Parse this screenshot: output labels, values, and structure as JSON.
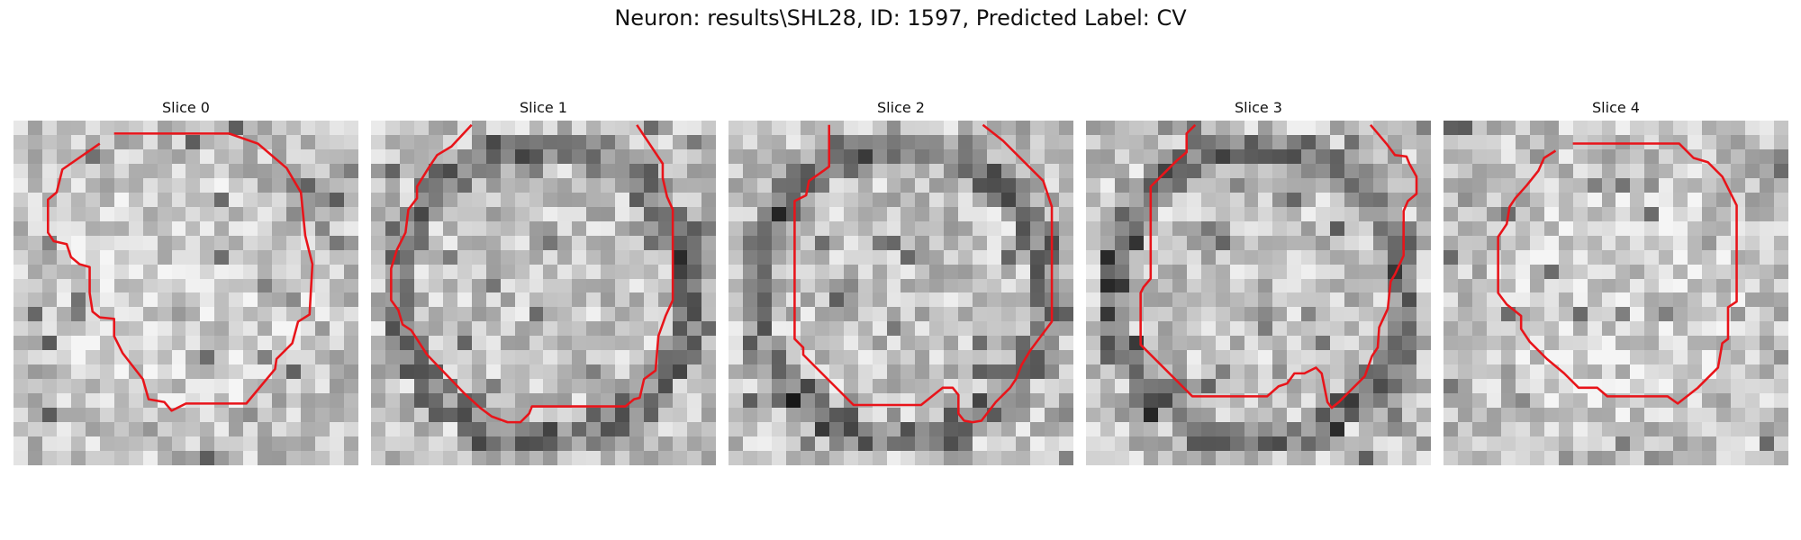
{
  "figure": {
    "title": "Neuron: results\\SHL28, ID: 1597, Predicted Label: CV"
  },
  "colors": {
    "contour": "#e8141a"
  },
  "panels": [
    {
      "title": "Slice 0",
      "seed": 11,
      "dark_ring": false,
      "contour": [
        [
          7,
          0.9
        ],
        [
          15,
          0.9
        ],
        [
          17,
          1.6
        ],
        [
          19,
          3.3
        ],
        [
          20,
          5
        ],
        [
          20.3,
          8
        ],
        [
          20.8,
          10
        ],
        [
          20.6,
          13.5
        ],
        [
          19.8,
          14
        ],
        [
          19.4,
          15.5
        ],
        [
          18.3,
          16.6
        ],
        [
          18.2,
          17.3
        ],
        [
          16.2,
          19.7
        ],
        [
          13,
          19.7
        ],
        [
          12,
          19.7
        ],
        [
          11,
          20.2
        ],
        [
          10.5,
          19.6
        ],
        [
          9.4,
          19.4
        ],
        [
          9,
          18
        ],
        [
          7.6,
          16.2
        ],
        [
          7,
          15
        ],
        [
          7,
          13.8
        ],
        [
          6,
          13.7
        ],
        [
          5.5,
          13.3
        ],
        [
          5.3,
          12
        ],
        [
          5.3,
          10.2
        ],
        [
          4.6,
          10
        ],
        [
          4,
          9.5
        ],
        [
          3.7,
          8.6
        ],
        [
          2.8,
          8.4
        ],
        [
          2.4,
          7.8
        ],
        [
          2.4,
          5.5
        ],
        [
          3,
          5
        ],
        [
          3.4,
          3.4
        ],
        [
          6,
          1.6
        ]
      ]
    },
    {
      "title": "Slice 1",
      "seed": 23,
      "dark_ring": true,
      "contour": [
        [
          7,
          0.3
        ],
        [
          5.6,
          1.8
        ],
        [
          4.6,
          2.4
        ],
        [
          4,
          3.3
        ],
        [
          3.2,
          4.6
        ],
        [
          3.2,
          5.4
        ],
        [
          2.6,
          6.2
        ],
        [
          2.4,
          7.8
        ],
        [
          1.8,
          9
        ],
        [
          1.4,
          10.3
        ],
        [
          1.4,
          12.5
        ],
        [
          1.9,
          13.2
        ],
        [
          2.2,
          14.2
        ],
        [
          2.8,
          14.6
        ],
        [
          3.9,
          16.3
        ],
        [
          6.5,
          19
        ],
        [
          7.6,
          20
        ],
        [
          8.4,
          20.6
        ],
        [
          9.5,
          21
        ],
        [
          10.4,
          21
        ],
        [
          11,
          20.4
        ],
        [
          11.2,
          19.9
        ],
        [
          17.7,
          19.9
        ],
        [
          18.3,
          19.4
        ],
        [
          18.7,
          19.3
        ],
        [
          19,
          18
        ],
        [
          19.8,
          17.4
        ],
        [
          20,
          15
        ],
        [
          20.5,
          13.6
        ],
        [
          21,
          12.5
        ],
        [
          21,
          6.2
        ],
        [
          20.6,
          5.3
        ],
        [
          20.3,
          4
        ],
        [
          20.3,
          3
        ],
        [
          18.5,
          0.3
        ]
      ]
    },
    {
      "title": "Slice 2",
      "seed": 37,
      "dark_ring": true,
      "contour": [
        [
          7,
          0.3
        ],
        [
          7,
          3.2
        ],
        [
          6.6,
          3.5
        ],
        [
          5.6,
          4.2
        ],
        [
          5.4,
          5.2
        ],
        [
          4.6,
          5.6
        ],
        [
          4.6,
          15.2
        ],
        [
          5.2,
          15.8
        ],
        [
          5.2,
          16.3
        ],
        [
          8.7,
          19.8
        ],
        [
          13.4,
          19.8
        ],
        [
          14.9,
          18.6
        ],
        [
          15.6,
          18.6
        ],
        [
          16,
          19.1
        ],
        [
          16,
          20.4
        ],
        [
          16.4,
          20.9
        ],
        [
          17,
          21
        ],
        [
          17.6,
          20.9
        ],
        [
          18.6,
          19.6
        ],
        [
          19,
          19.2
        ],
        [
          19.6,
          18.6
        ],
        [
          20,
          18
        ],
        [
          20.4,
          17
        ],
        [
          21,
          16
        ],
        [
          22.5,
          14
        ],
        [
          22.5,
          6
        ],
        [
          21.9,
          4.2
        ],
        [
          19.1,
          1.4
        ],
        [
          17.7,
          0.3
        ]
      ]
    },
    {
      "title": "Slice 3",
      "seed": 53,
      "dark_ring": true,
      "contour": [
        [
          7.6,
          0.3
        ],
        [
          7,
          0.9
        ],
        [
          7,
          2.2
        ],
        [
          6.3,
          2.8
        ],
        [
          5.1,
          4
        ],
        [
          4.5,
          4.6
        ],
        [
          4.5,
          11
        ],
        [
          4,
          11.6
        ],
        [
          3.8,
          12
        ],
        [
          3.8,
          15.6
        ],
        [
          7.4,
          19.2
        ],
        [
          12.6,
          19.2
        ],
        [
          13.4,
          18.5
        ],
        [
          14,
          18.3
        ],
        [
          14.5,
          17.6
        ],
        [
          15.2,
          17.6
        ],
        [
          16,
          17.2
        ],
        [
          16.4,
          17.6
        ],
        [
          16.8,
          19.6
        ],
        [
          17.1,
          20
        ],
        [
          17.6,
          19.6
        ],
        [
          19.4,
          17.8
        ],
        [
          19.9,
          16.4
        ],
        [
          20.3,
          15.8
        ],
        [
          20.4,
          14.4
        ],
        [
          21,
          13.1
        ],
        [
          21.2,
          11.2
        ],
        [
          21.5,
          10.7
        ],
        [
          22.1,
          9.4
        ],
        [
          22.1,
          6.3
        ],
        [
          22.4,
          5.6
        ],
        [
          23,
          5.1
        ],
        [
          23,
          3.9
        ],
        [
          22.5,
          3
        ],
        [
          22.3,
          2.5
        ],
        [
          21.5,
          2.4
        ],
        [
          20.9,
          1.6
        ],
        [
          19.8,
          0.3
        ]
      ]
    },
    {
      "title": "Slice 4",
      "seed": 71,
      "dark_ring": false,
      "contour": [
        [
          9,
          1.6
        ],
        [
          16.4,
          1.6
        ],
        [
          17.4,
          2.6
        ],
        [
          18.4,
          2.9
        ],
        [
          19.4,
          3.9
        ],
        [
          20.4,
          5.9
        ],
        [
          20.4,
          12.6
        ],
        [
          19.8,
          13
        ],
        [
          19.8,
          15.2
        ],
        [
          19.4,
          15.5
        ],
        [
          19.1,
          17.2
        ],
        [
          17.7,
          18.6
        ],
        [
          16.3,
          19.7
        ],
        [
          15.6,
          19.2
        ],
        [
          11.4,
          19.2
        ],
        [
          10.7,
          18.6
        ],
        [
          9.4,
          18.6
        ],
        [
          8.8,
          18
        ],
        [
          8.4,
          17.6
        ],
        [
          7.2,
          16.6
        ],
        [
          6.9,
          16.3
        ],
        [
          6,
          15.4
        ],
        [
          5.4,
          14.5
        ],
        [
          5.4,
          13.6
        ],
        [
          4.4,
          12.8
        ],
        [
          3.8,
          12
        ],
        [
          3.8,
          8.1
        ],
        [
          4.4,
          7.2
        ],
        [
          4.6,
          6
        ],
        [
          5,
          5.4
        ],
        [
          5.8,
          4.5
        ],
        [
          6.6,
          3.5
        ],
        [
          7,
          2.6
        ],
        [
          7.8,
          2.1
        ]
      ]
    }
  ]
}
